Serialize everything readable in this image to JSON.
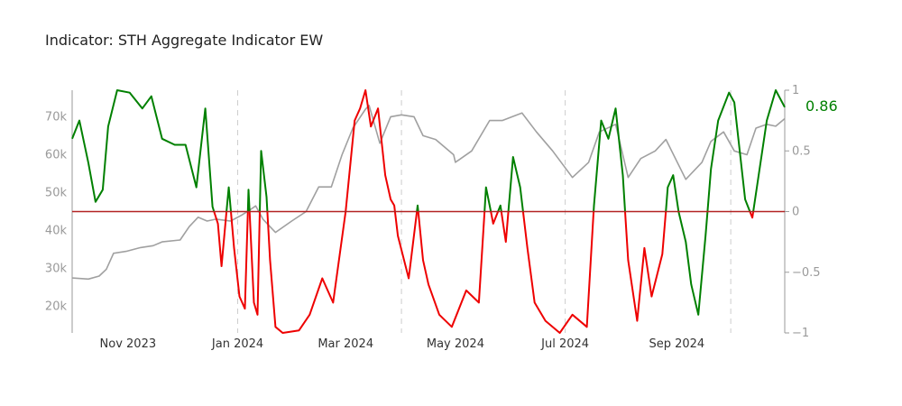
{
  "chart_data": {
    "type": "line",
    "title": "Indicator: STH Aggregate Indicator EW",
    "x_tick_labels": [
      "Nov 2023",
      "Jan 2024",
      "Mar 2024",
      "May 2024",
      "Jul 2024",
      "Sep 2024"
    ],
    "x_tick_dates": [
      "2023-11-01",
      "2024-01-01",
      "2024-03-01",
      "2024-05-01",
      "2024-07-01",
      "2024-09-01"
    ],
    "x_range": [
      "2023-10-01",
      "2024-10-31"
    ],
    "quarter_lines": [
      "2024-01-01",
      "2024-04-01",
      "2024-07-01",
      "2024-10-01"
    ],
    "left_axis": {
      "ticks": [
        20000,
        30000,
        40000,
        50000,
        60000,
        70000
      ],
      "tick_labels": [
        "20k",
        "30k",
        "40k",
        "50k",
        "60k",
        "70k"
      ],
      "range": [
        13000,
        77000
      ]
    },
    "right_axis": {
      "ticks": [
        -1,
        -0.5,
        0,
        0.5,
        1
      ],
      "tick_labels": [
        "−1",
        "−0.5",
        "0",
        "0.5",
        "1"
      ],
      "range": [
        -1,
        1
      ]
    },
    "zero_line_color": "#b22222",
    "last_value_label": "0.86",
    "colors": {
      "price": "#a0a0a0",
      "positive": "#008000",
      "negative": "#ee0000"
    },
    "series": [
      {
        "axis": "left",
        "color": "#a0a0a0",
        "points": [
          [
            "2023-10-01",
            27500
          ],
          [
            "2023-10-10",
            27200
          ],
          [
            "2023-10-16",
            28000
          ],
          [
            "2023-10-20",
            29800
          ],
          [
            "2023-10-24",
            34000
          ],
          [
            "2023-10-31",
            34500
          ],
          [
            "2023-11-08",
            35500
          ],
          [
            "2023-11-15",
            36000
          ],
          [
            "2023-11-20",
            37000
          ],
          [
            "2023-11-30",
            37500
          ],
          [
            "2023-12-05",
            41000
          ],
          [
            "2023-12-10",
            43500
          ],
          [
            "2023-12-15",
            42500
          ],
          [
            "2023-12-20",
            43000
          ],
          [
            "2023-12-28",
            42500
          ],
          [
            "2024-01-03",
            44000
          ],
          [
            "2024-01-08",
            45500
          ],
          [
            "2024-01-11",
            46500
          ],
          [
            "2024-01-15",
            43000
          ],
          [
            "2024-01-22",
            39500
          ],
          [
            "2024-01-31",
            42500
          ],
          [
            "2024-02-08",
            45000
          ],
          [
            "2024-02-15",
            51500
          ],
          [
            "2024-02-22",
            51500
          ],
          [
            "2024-02-28",
            60000
          ],
          [
            "2024-03-05",
            67000
          ],
          [
            "2024-03-12",
            72000
          ],
          [
            "2024-03-14",
            73000
          ],
          [
            "2024-03-20",
            63000
          ],
          [
            "2024-03-26",
            70000
          ],
          [
            "2024-04-01",
            70500
          ],
          [
            "2024-04-08",
            70000
          ],
          [
            "2024-04-13",
            65000
          ],
          [
            "2024-04-20",
            64000
          ],
          [
            "2024-04-30",
            60000
          ],
          [
            "2024-05-01",
            58000
          ],
          [
            "2024-05-10",
            61000
          ],
          [
            "2024-05-20",
            69000
          ],
          [
            "2024-05-27",
            69000
          ],
          [
            "2024-06-07",
            71000
          ],
          [
            "2024-06-15",
            66000
          ],
          [
            "2024-06-24",
            61000
          ],
          [
            "2024-07-05",
            54000
          ],
          [
            "2024-07-14",
            58000
          ],
          [
            "2024-07-20",
            66000
          ],
          [
            "2024-07-29",
            68000
          ],
          [
            "2024-08-05",
            54000
          ],
          [
            "2024-08-12",
            59000
          ],
          [
            "2024-08-20",
            61000
          ],
          [
            "2024-08-26",
            64000
          ],
          [
            "2024-09-06",
            53500
          ],
          [
            "2024-09-15",
            58000
          ],
          [
            "2024-09-20",
            63500
          ],
          [
            "2024-09-27",
            66000
          ],
          [
            "2024-10-03",
            61000
          ],
          [
            "2024-10-10",
            60000
          ],
          [
            "2024-10-15",
            67000
          ],
          [
            "2024-10-21",
            68000
          ],
          [
            "2024-10-26",
            67500
          ],
          [
            "2024-10-31",
            69500
          ]
        ]
      },
      {
        "axis": "right",
        "color_rule": "green when above 0, red when below 0",
        "points": [
          [
            "2023-10-01",
            0.6
          ],
          [
            "2023-10-05",
            0.75
          ],
          [
            "2023-10-10",
            0.4
          ],
          [
            "2023-10-14",
            0.08
          ],
          [
            "2023-10-18",
            0.18
          ],
          [
            "2023-10-21",
            0.7
          ],
          [
            "2023-10-26",
            1.0
          ],
          [
            "2023-11-02",
            0.98
          ],
          [
            "2023-11-09",
            0.85
          ],
          [
            "2023-11-14",
            0.95
          ],
          [
            "2023-11-20",
            0.6
          ],
          [
            "2023-11-27",
            0.55
          ],
          [
            "2023-12-03",
            0.55
          ],
          [
            "2023-12-09",
            0.2
          ],
          [
            "2023-12-14",
            0.85
          ],
          [
            "2023-12-18",
            0.04
          ],
          [
            "2023-12-21",
            -0.1
          ],
          [
            "2023-12-23",
            -0.45
          ],
          [
            "2023-12-27",
            0.2
          ],
          [
            "2023-12-30",
            -0.3
          ],
          [
            "2024-01-02",
            -0.7
          ],
          [
            "2024-01-05",
            -0.8
          ],
          [
            "2024-01-07",
            0.18
          ],
          [
            "2024-01-10",
            -0.75
          ],
          [
            "2024-01-12",
            -0.85
          ],
          [
            "2024-01-14",
            0.5
          ],
          [
            "2024-01-17",
            0.12
          ],
          [
            "2024-01-19",
            -0.4
          ],
          [
            "2024-01-22",
            -0.95
          ],
          [
            "2024-01-26",
            -1.0
          ],
          [
            "2024-02-04",
            -0.98
          ],
          [
            "2024-02-10",
            -0.85
          ],
          [
            "2024-02-17",
            -0.55
          ],
          [
            "2024-02-23",
            -0.75
          ],
          [
            "2024-03-01",
            0.0
          ],
          [
            "2024-03-06",
            0.75
          ],
          [
            "2024-03-09",
            0.85
          ],
          [
            "2024-03-12",
            1.0
          ],
          [
            "2024-03-15",
            0.7
          ],
          [
            "2024-03-19",
            0.85
          ],
          [
            "2024-03-23",
            0.3
          ],
          [
            "2024-03-26",
            0.1
          ],
          [
            "2024-03-28",
            0.05
          ],
          [
            "2024-03-30",
            -0.2
          ],
          [
            "2024-04-05",
            -0.55
          ],
          [
            "2024-04-10",
            0.05
          ],
          [
            "2024-04-13",
            -0.4
          ],
          [
            "2024-04-16",
            -0.6
          ],
          [
            "2024-04-22",
            -0.85
          ],
          [
            "2024-04-29",
            -0.95
          ],
          [
            "2024-05-07",
            -0.65
          ],
          [
            "2024-05-14",
            -0.75
          ],
          [
            "2024-05-18",
            0.2
          ],
          [
            "2024-05-22",
            -0.1
          ],
          [
            "2024-05-26",
            0.05
          ],
          [
            "2024-05-29",
            -0.25
          ],
          [
            "2024-06-02",
            0.45
          ],
          [
            "2024-06-06",
            0.2
          ],
          [
            "2024-06-10",
            -0.3
          ],
          [
            "2024-06-14",
            -0.75
          ],
          [
            "2024-06-20",
            -0.9
          ],
          [
            "2024-06-28",
            -1.0
          ],
          [
            "2024-07-05",
            -0.85
          ],
          [
            "2024-07-13",
            -0.95
          ],
          [
            "2024-07-17",
            0.05
          ],
          [
            "2024-07-21",
            0.75
          ],
          [
            "2024-07-25",
            0.6
          ],
          [
            "2024-07-29",
            0.85
          ],
          [
            "2024-08-02",
            0.3
          ],
          [
            "2024-08-05",
            -0.4
          ],
          [
            "2024-08-10",
            -0.9
          ],
          [
            "2024-08-14",
            -0.3
          ],
          [
            "2024-08-18",
            -0.7
          ],
          [
            "2024-08-24",
            -0.35
          ],
          [
            "2024-08-27",
            0.2
          ],
          [
            "2024-08-30",
            0.3
          ],
          [
            "2024-09-02",
            0.0
          ],
          [
            "2024-09-06",
            -0.25
          ],
          [
            "2024-09-09",
            -0.6
          ],
          [
            "2024-09-13",
            -0.85
          ],
          [
            "2024-09-17",
            -0.2
          ],
          [
            "2024-09-20",
            0.35
          ],
          [
            "2024-09-24",
            0.75
          ],
          [
            "2024-09-30",
            0.98
          ],
          [
            "2024-10-03",
            0.9
          ],
          [
            "2024-10-06",
            0.5
          ],
          [
            "2024-10-09",
            0.1
          ],
          [
            "2024-10-13",
            -0.05
          ],
          [
            "2024-10-17",
            0.35
          ],
          [
            "2024-10-21",
            0.75
          ],
          [
            "2024-10-26",
            1.0
          ],
          [
            "2024-10-31",
            0.86
          ]
        ]
      }
    ]
  }
}
